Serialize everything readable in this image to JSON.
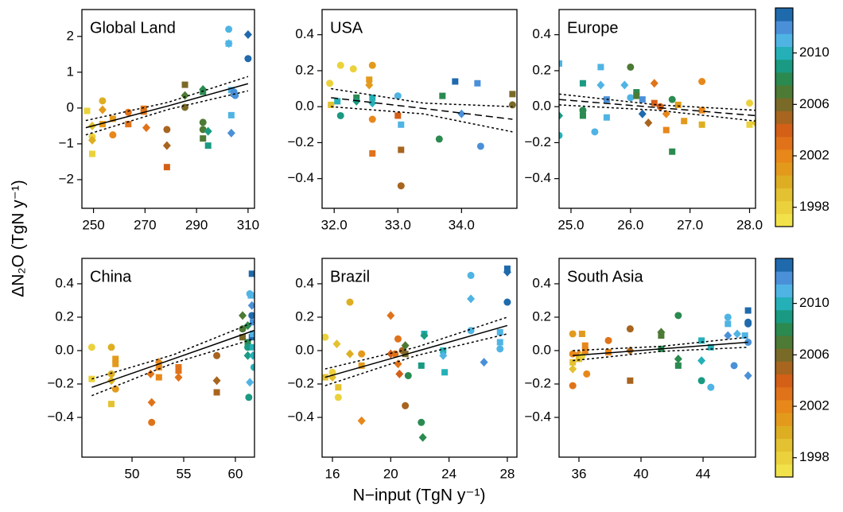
{
  "ylabel": "ΔN₂O (TgN y⁻¹)",
  "xlabel": "N−input (TgN y⁻¹)",
  "colorbar": {
    "lim": [
      1996.5,
      2013.5
    ],
    "ticks": [
      1998,
      2002,
      2006,
      2010
    ],
    "colors": [
      "#f2e24a",
      "#ebd23c",
      "#e4c130",
      "#deae22",
      "#e39a1c",
      "#e8871a",
      "#e0731a",
      "#d45f17",
      "#a8651f",
      "#7a6a28",
      "#4d7a34",
      "#2a8a50",
      "#1a9a82",
      "#25b0b8",
      "#4fb4e4",
      "#4a90d8",
      "#1f6aac"
    ]
  },
  "chart_data": [
    {
      "type": "scatter",
      "title": "Global Land",
      "xlim": [
        245.5,
        312.5
      ],
      "ylim": [
        -2.8,
        2.75
      ],
      "xticks": [
        250,
        270,
        290,
        310
      ],
      "yticks": [
        {
          "value": -2,
          "label": "−2"
        },
        {
          "value": -1,
          "label": "−1"
        },
        0,
        1,
        2
      ],
      "x": [
        247.5,
        249.5,
        249.5,
        249.5,
        249.5,
        253.5,
        253.5,
        253.5,
        257.5,
        257.5,
        263.5,
        263.5,
        269.5,
        269.5,
        270.5,
        278.5,
        278.5,
        278.5,
        285.5,
        285.5,
        285.5,
        292.5,
        292.5,
        292.5,
        292.5,
        292.5,
        294.5,
        294.5,
        302.5,
        302.5,
        302.5,
        303.5,
        303.5,
        303.5,
        304.5,
        304.5,
        305,
        310,
        310
      ],
      "y": [
        -0.08,
        -0.8,
        -0.5,
        -1.28,
        -0.9,
        0.2,
        -0.05,
        -0.45,
        -0.3,
        -0.75,
        -0.12,
        -0.45,
        -0.1,
        -0.02,
        -0.55,
        -0.6,
        -1.05,
        -1.65,
        0.65,
        0.35,
        0.02,
        0.52,
        0.45,
        -0.4,
        -0.6,
        -0.85,
        -0.65,
        -1.05,
        2.2,
        1.8,
        1.8,
        0.5,
        -0.2,
        -0.7,
        0.45,
        0.4,
        0.35,
        2.05,
        1.38
      ],
      "years": [
        1998,
        1998,
        1999,
        1998,
        2000,
        2000,
        2001,
        2001,
        2001,
        2002,
        2003,
        2003,
        2003,
        2003,
        2003,
        2005,
        2005,
        2004,
        2006,
        2007,
        2006,
        2008,
        2008,
        2007,
        2007,
        2007,
        2009,
        2009,
        2011,
        2011,
        2011,
        2011,
        2011,
        2012,
        2012,
        2012,
        2012,
        2013,
        2013
      ],
      "markers": [
        "s",
        "c",
        "d",
        "s",
        "d",
        "c",
        "d",
        "s",
        "s",
        "c",
        "c",
        "s",
        "s",
        "s",
        "d",
        "c",
        "d",
        "s",
        "s",
        "d",
        "c",
        "d",
        "s",
        "c",
        "c",
        "s",
        "d",
        "s",
        "c",
        "d",
        "s",
        "s",
        "s",
        "d",
        "c",
        "s",
        "c",
        "d",
        "c"
      ],
      "fit": {
        "style": "solid",
        "x": [
          247,
          279,
          310
        ],
        "y": [
          -0.55,
          0.06,
          0.68
        ],
        "lower": [
          -0.75,
          -0.04,
          0.48
        ],
        "upper": [
          -0.35,
          0.16,
          0.88
        ]
      }
    },
    {
      "type": "scatter",
      "title": "USA",
      "xlim": [
        31.81,
        34.87
      ],
      "ylim": [
        -0.565,
        0.54
      ],
      "xticks": [
        {
          "value": 32,
          "label": "32.0"
        },
        {
          "value": 33,
          "label": "33.0"
        },
        {
          "value": 34,
          "label": "34.0"
        }
      ],
      "yticks": [
        {
          "value": -0.4,
          "label": "−0.4"
        },
        {
          "value": -0.2,
          "label": "−0.2"
        },
        {
          "value": 0,
          "label": "0.0"
        },
        0.2,
        0.4
      ],
      "x": [
        31.93,
        31.95,
        32.1,
        32.05,
        32.1,
        32.3,
        32.35,
        32.35,
        32.6,
        32.55,
        32.55,
        32.6,
        32.6,
        32.6,
        32.6,
        33.0,
        33.0,
        33.05,
        33.05,
        33.05,
        33.7,
        33.65,
        33.9,
        34.0,
        34.25,
        34.3,
        34.8,
        34.8
      ],
      "y": [
        0.13,
        0.01,
        0.23,
        0.03,
        -0.05,
        0.21,
        0.05,
        0.03,
        0.23,
        0.15,
        0.12,
        0.05,
        0.02,
        -0.07,
        -0.26,
        0.06,
        -0.05,
        -0.1,
        -0.24,
        -0.44,
        0.06,
        -0.18,
        0.14,
        -0.04,
        0.13,
        -0.22,
        0.07,
        0.01
      ],
      "years": [
        1998,
        1999,
        1998,
        2010,
        2009,
        1998,
        2008,
        2009,
        2001,
        2001,
        2001,
        2010,
        2010,
        2002,
        2003,
        2011,
        2004,
        2011,
        2005,
        2005,
        2008,
        2008,
        2013,
        2012,
        2012,
        2012,
        2006,
        2006
      ],
      "markers": [
        "c",
        "s",
        "c",
        "s",
        "c",
        "c",
        "s",
        "d",
        "c",
        "s",
        "d",
        "s",
        "d",
        "c",
        "s",
        "c",
        "s",
        "s",
        "s",
        "c",
        "s",
        "c",
        "s",
        "d",
        "s",
        "c",
        "s",
        "c"
      ],
      "fit": {
        "style": "dashed",
        "x": [
          31.95,
          33.4,
          34.8
        ],
        "y": [
          0.05,
          -0.01,
          -0.07
        ],
        "lower": [
          0.0,
          -0.04,
          -0.14
        ],
        "upper": [
          0.1,
          0.02,
          0.0
        ]
      }
    },
    {
      "type": "scatter",
      "title": "Europe",
      "xlim": [
        24.8,
        28.1
      ],
      "ylim": [
        -0.565,
        0.54
      ],
      "xticks": [
        {
          "value": 25,
          "label": "25.0"
        },
        {
          "value": 26,
          "label": "26.0"
        },
        {
          "value": 27,
          "label": "27.0"
        },
        {
          "value": 28,
          "label": "28.0"
        }
      ],
      "yticks": [
        {
          "value": -0.4,
          "label": "−0.4"
        },
        {
          "value": -0.2,
          "label": "−0.2"
        },
        {
          "value": 0,
          "label": "0.0"
        },
        0.2,
        0.4
      ],
      "x": [
        24.8,
        24.8,
        24.8,
        25.2,
        25.2,
        25.2,
        25.5,
        25.5,
        25.4,
        25.6,
        25.6,
        26.0,
        25.9,
        26.0,
        26.1,
        26.1,
        26.2,
        26.2,
        26.3,
        26.4,
        26.4,
        26.5,
        26.6,
        26.6,
        26.7,
        26.7,
        26.8,
        26.9,
        27.2,
        27.2,
        27.2,
        28.0,
        28.0,
        28.1
      ],
      "y": [
        0.24,
        -0.05,
        -0.16,
        0.13,
        -0.02,
        -0.05,
        0.22,
        0.12,
        -0.14,
        0.04,
        -0.06,
        0.22,
        0.12,
        0.05,
        0.08,
        0.06,
        0.04,
        -0.04,
        -0.09,
        0.13,
        0.02,
        0.0,
        -0.04,
        -0.13,
        0.04,
        -0.25,
        0.01,
        -0.08,
        0.14,
        -0.02,
        -0.1,
        0.02,
        -0.1,
        -0.09
      ],
      "years": [
        2011,
        2009,
        2010,
        2009,
        2008,
        2008,
        2011,
        2011,
        2011,
        2012,
        2011,
        2007,
        2011,
        2011,
        2008,
        2007,
        2012,
        2013,
        2005,
        2003,
        2004,
        2004,
        2002,
        2002,
        2008,
        2008,
        2001,
        2001,
        2002,
        2002,
        2000,
        1998,
        1998,
        1999
      ],
      "markers": [
        "s",
        "d",
        "c",
        "s",
        "c",
        "s",
        "s",
        "d",
        "c",
        "s",
        "s",
        "c",
        "d",
        "c",
        "s",
        "s",
        "s",
        "d",
        "d",
        "d",
        "s",
        "c",
        "d",
        "s",
        "c",
        "s",
        "s",
        "s",
        "c",
        "s",
        "s",
        "c",
        "s",
        "d"
      ],
      "fit": {
        "style": "dashed",
        "x": [
          24.8,
          26.45,
          28.1
        ],
        "y": [
          0.04,
          -0.005,
          -0.05
        ],
        "lower": [
          0.01,
          -0.02,
          -0.08
        ],
        "upper": [
          0.07,
          0.01,
          -0.02
        ]
      }
    },
    {
      "type": "scatter",
      "title": "China",
      "xlim": [
        45.15,
        61.85
      ],
      "ylim": [
        -0.638,
        0.552
      ],
      "xticks": [
        50,
        55,
        60
      ],
      "yticks": [
        {
          "value": -0.4,
          "label": "−0.4"
        },
        {
          "value": -0.2,
          "label": "−0.2"
        },
        {
          "value": 0,
          "label": "0.0"
        },
        0.2,
        0.4
      ],
      "x": [
        46.1,
        46.1,
        48.0,
        48.0,
        48.0,
        48.0,
        48.4,
        48.4,
        48.4,
        51.8,
        51.9,
        51.9,
        52.6,
        52.6,
        52.6,
        54.5,
        54.5,
        54.5,
        58.2,
        58.2,
        58.2,
        60.7,
        60.7,
        60.7,
        61.2,
        61.2,
        61.2,
        61.2,
        61.3,
        61.4,
        61.4,
        61.5,
        61.6,
        61.6,
        61.6,
        61.7,
        61.6,
        61.7,
        61.7,
        61.8,
        61.7
      ],
      "y": [
        0.02,
        -0.17,
        0.02,
        -0.14,
        -0.32,
        -0.18,
        -0.05,
        -0.08,
        -0.23,
        -0.14,
        -0.31,
        -0.43,
        -0.07,
        -0.16,
        -0.1,
        -0.1,
        -0.16,
        -0.12,
        -0.03,
        -0.18,
        -0.25,
        0.21,
        0.13,
        0.08,
        0.15,
        0.05,
        0.02,
        -0.03,
        -0.28,
        -0.19,
        0.34,
        0.33,
        0.46,
        0.27,
        0.21,
        0.17,
        0.08,
        0.02,
        -0.03,
        -0.1,
        0.1
      ],
      "years": [
        1998,
        1998,
        2000,
        2000,
        1999,
        2000,
        2001,
        2001,
        2001,
        2003,
        2003,
        2003,
        2002,
        2002,
        2002,
        2003,
        2003,
        2003,
        2005,
        2005,
        2005,
        2007,
        2007,
        2006,
        2008,
        2008,
        2009,
        2009,
        2009,
        2011,
        2011,
        2011,
        2013,
        2012,
        2013,
        2012,
        2013,
        2010,
        2010,
        2010,
        2011
      ],
      "markers": [
        "c",
        "s",
        "c",
        "c",
        "s",
        "d",
        "s",
        "s",
        "c",
        "d",
        "d",
        "c",
        "d",
        "s",
        "s",
        "s",
        "d",
        "s",
        "c",
        "d",
        "s",
        "d",
        "c",
        "s",
        "d",
        "s",
        "c",
        "d",
        "c",
        "d",
        "c",
        "s",
        "s",
        "d",
        "c",
        "s",
        "s",
        "s",
        "d",
        "c",
        "s"
      ],
      "fit": {
        "style": "solid",
        "x": [
          46.1,
          54,
          61.8
        ],
        "y": [
          -0.22,
          -0.05,
          0.12
        ],
        "lower": [
          -0.27,
          -0.075,
          0.07
        ],
        "upper": [
          -0.17,
          -0.025,
          0.17
        ]
      }
    },
    {
      "type": "scatter",
      "title": "Brazil",
      "xlim": [
        15.29,
        28.66
      ],
      "ylim": [
        -0.638,
        0.552
      ],
      "xticks": [
        16,
        20,
        24,
        28
      ],
      "yticks": [
        {
          "value": -0.4,
          "label": "−0.4"
        },
        {
          "value": -0.2,
          "label": "−0.2"
        },
        {
          "value": 0,
          "label": "0.0"
        },
        0.2,
        0.4
      ],
      "x": [
        15.5,
        15.5,
        16.0,
        16.0,
        16.3,
        16.4,
        16.4,
        17.2,
        17.2,
        18.0,
        18.0,
        18.0,
        20.0,
        20.0,
        20.3,
        20.5,
        20.5,
        20.6,
        20.8,
        21.0,
        21.0,
        21.0,
        21.2,
        22.1,
        22.3,
        22.3,
        22.1,
        22.2,
        23.6,
        23.6,
        23.7,
        25.5,
        25.5,
        25.5,
        26.4,
        27.5,
        27.5,
        27.5,
        28.0,
        28.0,
        28.0
      ],
      "y": [
        0.08,
        -0.16,
        -0.13,
        -0.16,
        0.04,
        -0.22,
        -0.28,
        0.29,
        -0.02,
        -0.02,
        -0.09,
        -0.42,
        0.21,
        -0.02,
        -0.02,
        0.07,
        -0.08,
        -0.14,
        0.0,
        0.03,
        -0.02,
        -0.33,
        -0.15,
        -0.09,
        0.1,
        0.09,
        -0.43,
        -0.52,
        0.0,
        -0.03,
        -0.13,
        0.45,
        0.31,
        0.12,
        -0.07,
        0.11,
        0.05,
        0.01,
        0.49,
        0.47,
        0.29
      ],
      "years": [
        1998,
        1999,
        1998,
        1999,
        1999,
        1999,
        1998,
        2000,
        2000,
        2001,
        2001,
        2002,
        2003,
        2004,
        2003,
        2003,
        2003,
        2004,
        2005,
        2007,
        2006,
        2005,
        2008,
        2009,
        2010,
        2009,
        2008,
        2008,
        2010,
        2011,
        2010,
        2011,
        2011,
        2011,
        2012,
        2011,
        2011,
        2011,
        2013,
        2013,
        2013
      ],
      "markers": [
        "c",
        "s",
        "c",
        "d",
        "d",
        "s",
        "c",
        "c",
        "d",
        "c",
        "s",
        "d",
        "d",
        "d",
        "c",
        "c",
        "d",
        "d",
        "c",
        "d",
        "s",
        "c",
        "c",
        "s",
        "s",
        "d",
        "c",
        "d",
        "s",
        "d",
        "s",
        "c",
        "d",
        "c",
        "d",
        "s",
        "s",
        "c",
        "s",
        "d",
        "c"
      ],
      "fit": {
        "style": "solid",
        "x": [
          15.5,
          21.75,
          28.0
        ],
        "y": [
          -0.16,
          -0.005,
          0.15
        ],
        "lower": [
          -0.21,
          -0.03,
          0.1
        ],
        "upper": [
          -0.11,
          0.02,
          0.2
        ]
      }
    },
    {
      "type": "scatter",
      "title": "South Asia",
      "xlim": [
        34.72,
        47.38
      ],
      "ylim": [
        -0.638,
        0.552
      ],
      "xticks": [
        36,
        40,
        44
      ],
      "yticks": [
        {
          "value": -0.4,
          "label": "−0.4"
        },
        {
          "value": -0.2,
          "label": "−0.2"
        },
        {
          "value": 0,
          "label": "0.0"
        },
        0.2,
        0.4
      ],
      "x": [
        35.6,
        35.6,
        35.6,
        35.6,
        35.6,
        36.2,
        36.0,
        36.0,
        36.2,
        36.4,
        36.4,
        36.5,
        37.9,
        37.9,
        39.3,
        39.3,
        39.3,
        41.3,
        41.3,
        41.3,
        42.4,
        42.4,
        42.4,
        43.9,
        43.9,
        43.9,
        44.5,
        44.5,
        45.6,
        45.6,
        45.6,
        46.2,
        46.0,
        46.9,
        46.9,
        46.9,
        46.9,
        46.9,
        46.7
      ],
      "y": [
        0.1,
        -0.02,
        -0.07,
        -0.11,
        -0.21,
        0.1,
        -0.02,
        -0.05,
        -0.03,
        0.03,
        0.0,
        -0.14,
        0.06,
        -0.01,
        0.13,
        0.0,
        -0.18,
        0.11,
        0.09,
        0.01,
        0.21,
        -0.05,
        -0.09,
        0.06,
        -0.06,
        -0.18,
        0.02,
        -0.22,
        0.2,
        0.16,
        0.09,
        0.1,
        -0.09,
        0.24,
        0.17,
        0.16,
        0.05,
        -0.15,
        0.09
      ],
      "years": [
        2001,
        2002,
        1999,
        1999,
        2003,
        2001,
        2002,
        1999,
        1998,
        2002,
        2002,
        2002,
        2003,
        2002,
        2005,
        2005,
        2005,
        2007,
        2007,
        2008,
        2008,
        2008,
        2008,
        2010,
        2010,
        2009,
        2010,
        2011,
        2011,
        2011,
        2012,
        2011,
        2012,
        2013,
        2013,
        2013,
        2012,
        2012,
        2011
      ],
      "markers": [
        "c",
        "c",
        "s",
        "d",
        "c",
        "s",
        "d",
        "s",
        "c",
        "s",
        "s",
        "c",
        "c",
        "s",
        "c",
        "d",
        "s",
        "d",
        "s",
        "s",
        "c",
        "d",
        "s",
        "s",
        "d",
        "c",
        "s",
        "c",
        "c",
        "s",
        "d",
        "d",
        "c",
        "s",
        "c",
        "c",
        "c",
        "d",
        "s"
      ],
      "fit": {
        "style": "solid",
        "x": [
          35.6,
          41.25,
          46.9
        ],
        "y": [
          -0.03,
          0.01,
          0.05
        ],
        "lower": [
          -0.06,
          -0.005,
          0.02
        ],
        "upper": [
          0.0,
          0.025,
          0.08
        ]
      }
    }
  ]
}
